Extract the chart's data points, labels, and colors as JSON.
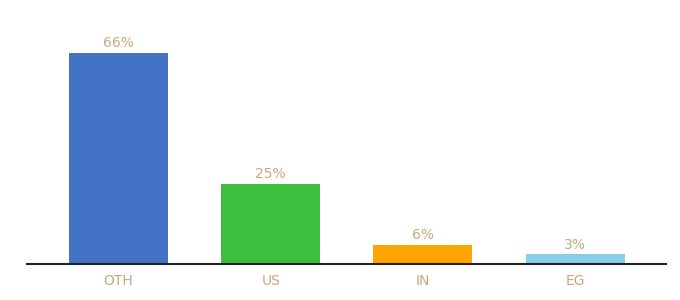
{
  "categories": [
    "OTH",
    "US",
    "IN",
    "EG"
  ],
  "values": [
    66,
    25,
    6,
    3
  ],
  "labels": [
    "66%",
    "25%",
    "6%",
    "3%"
  ],
  "bar_colors": [
    "#4472C4",
    "#3DBF3D",
    "#FFA500",
    "#87CEEB"
  ],
  "ylim": [
    0,
    75
  ],
  "label_color": "#C8A882",
  "xlabel_color": "#C8A882",
  "background_color": "#ffffff",
  "bar_width": 0.65
}
